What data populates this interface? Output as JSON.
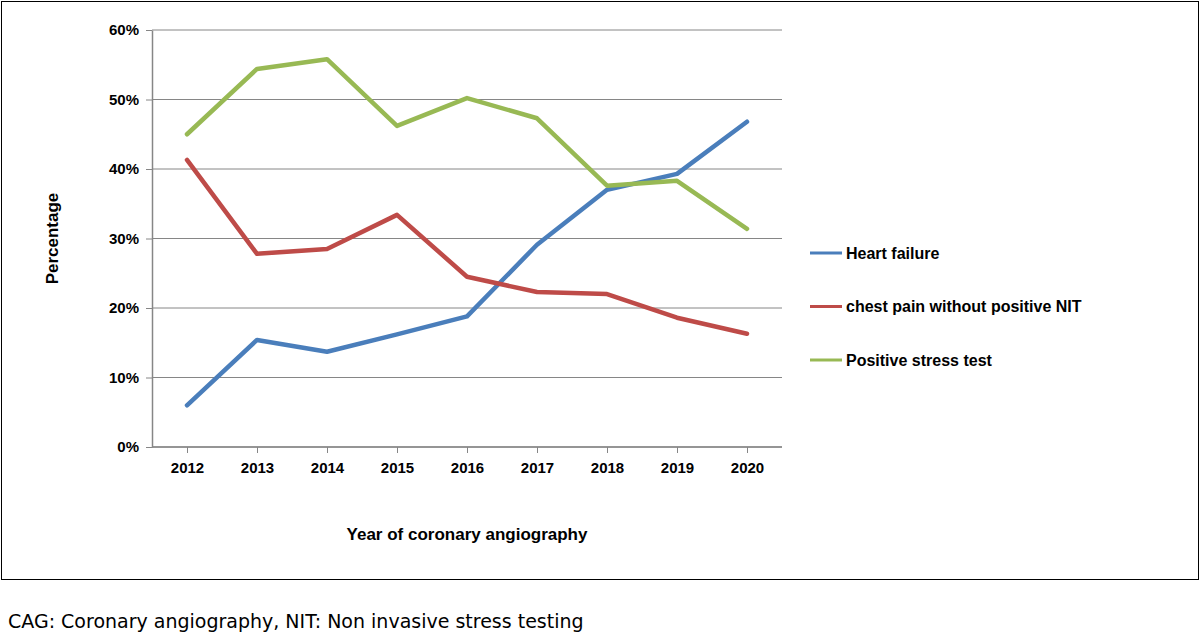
{
  "chart_data": {
    "type": "line",
    "x_label": "Year of coronary angiography",
    "y_label": "Percentage",
    "caption": "CAG: Coronary angiography, NIT: Non invasive stress testing",
    "categories": [
      "2012",
      "2013",
      "2014",
      "2015",
      "2016",
      "2017",
      "2018",
      "2019",
      "2020"
    ],
    "series": [
      {
        "name": "Heart failure",
        "color": "#4a7ebb",
        "values": [
          6.0,
          15.4,
          13.7,
          16.2,
          18.8,
          29.1,
          37.0,
          39.3,
          46.8
        ]
      },
      {
        "name": "chest pain without positive NIT",
        "color": "#be4b48",
        "values": [
          41.3,
          27.8,
          28.5,
          33.4,
          24.5,
          22.3,
          22.0,
          18.6,
          16.3
        ]
      },
      {
        "name": "Positive stress test",
        "color": "#98b954",
        "values": [
          45.0,
          54.4,
          55.8,
          46.2,
          50.2,
          47.3,
          37.6,
          38.3,
          31.4
        ]
      }
    ],
    "ylim": [
      0,
      60
    ],
    "yticks": [
      {
        "value": 0,
        "label": "0%"
      },
      {
        "value": 10,
        "label": "10%"
      },
      {
        "value": 20,
        "label": "20%"
      },
      {
        "value": 30,
        "label": "30%"
      },
      {
        "value": 40,
        "label": "40%"
      },
      {
        "value": 50,
        "label": "50%"
      },
      {
        "value": 60,
        "label": "60%"
      }
    ],
    "grid": true,
    "legend": "right"
  }
}
